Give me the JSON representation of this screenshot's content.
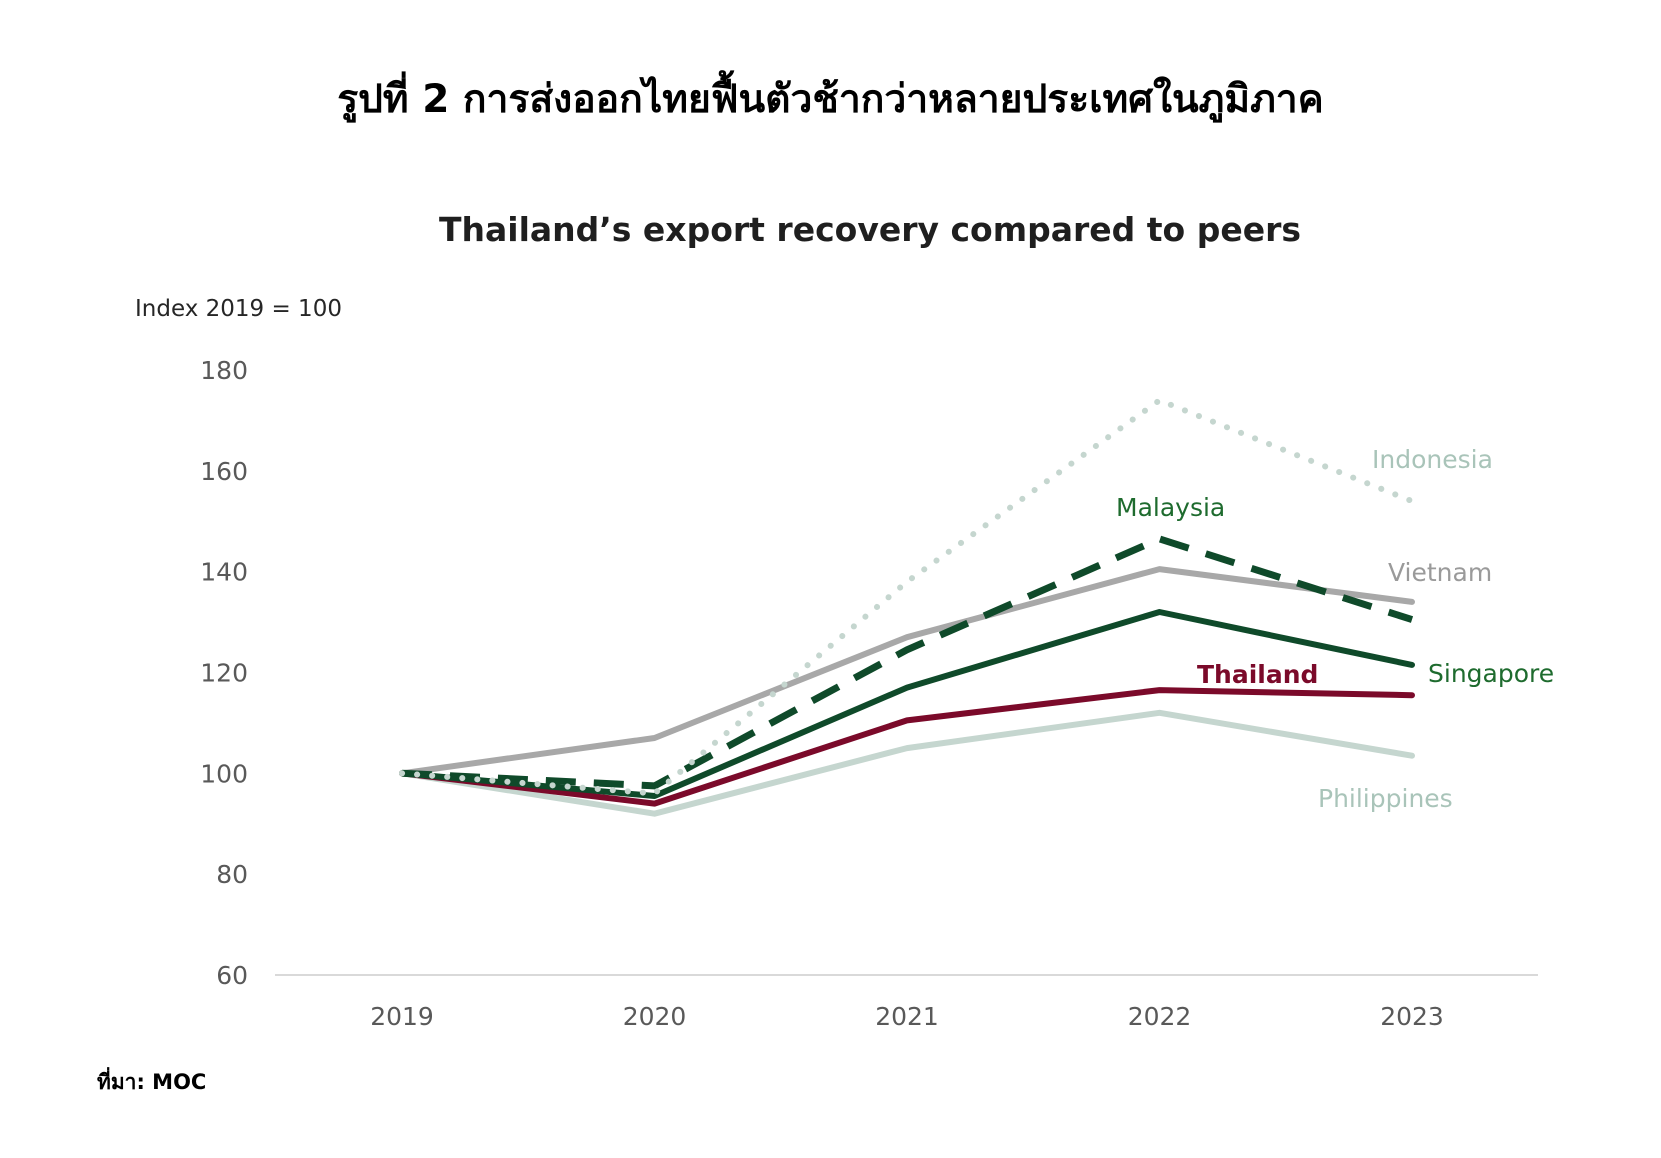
{
  "figure_title": "รูปที่ 2 การส่งออกไทยฟื้นตัวช้ากว่าหลายประเทศในภูมิภาค",
  "source": "ที่มา: MOC",
  "chart_data": {
    "type": "line",
    "title": "Thailand’s export recovery compared to peers",
    "ylabel": "Index 2019 = 100",
    "xlabel": "",
    "x": [
      "2019",
      "2020",
      "2021",
      "2022",
      "2023"
    ],
    "ylim": [
      60,
      180
    ],
    "yticks": [
      60,
      80,
      100,
      120,
      140,
      160,
      180
    ],
    "grid": false,
    "legend": "inline labels",
    "series": [
      {
        "name": "Philippines",
        "values": [
          100,
          92,
          105,
          112,
          103.5
        ],
        "color": "#c5d6cf",
        "style": "solid"
      },
      {
        "name": "Thailand",
        "values": [
          100,
          94,
          110.5,
          116.5,
          115.5
        ],
        "color": "#7b0a2a",
        "style": "solid",
        "bold_label": true
      },
      {
        "name": "Singapore",
        "values": [
          100,
          95.5,
          117,
          132,
          121.5
        ],
        "color": "#0f4a2a",
        "style": "solid"
      },
      {
        "name": "Vietnam",
        "values": [
          100,
          107,
          127,
          140.5,
          134
        ],
        "color": "#a8a8a8",
        "style": "solid"
      },
      {
        "name": "Malaysia",
        "values": [
          100,
          97.5,
          124.5,
          146.5,
          130.5
        ],
        "color": "#0f4a2a",
        "style": "dashed"
      },
      {
        "name": "Indonesia",
        "values": [
          100,
          96,
          138,
          174,
          154
        ],
        "color": "#c5d6cf",
        "style": "dotted"
      }
    ]
  }
}
